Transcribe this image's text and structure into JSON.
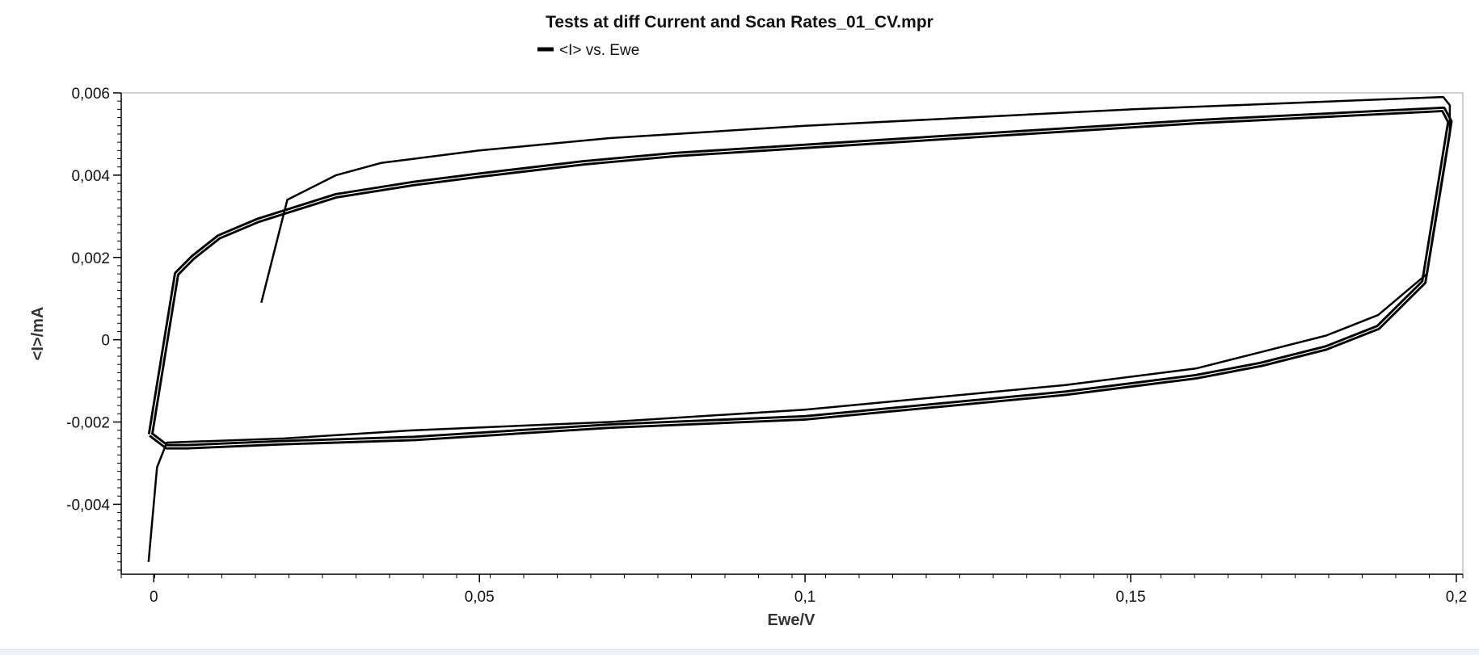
{
  "chart_data": {
    "type": "line",
    "title": "Tests at diff Current and Scan Rates_01_CV.mpr",
    "legend": {
      "entries": [
        "<I> vs. Ewe"
      ],
      "placement": "top-left"
    },
    "xlabel": "Ewe/V",
    "ylabel": "<I>/mA",
    "xlim": [
      -0.005,
      0.201
    ],
    "ylim": [
      -0.0057,
      0.006
    ],
    "x_ticks": [
      0,
      0.05,
      0.1,
      0.15,
      0.2
    ],
    "x_tick_labels": [
      "0",
      "0,05",
      "0,1",
      "0,15",
      "0,2"
    ],
    "y_ticks": [
      -0.004,
      -0.002,
      0,
      0.002,
      0.004,
      0.006
    ],
    "y_tick_labels": [
      "-0,004",
      "-0,002",
      "0",
      "0,002",
      "0,004",
      "0,006"
    ],
    "grid": false,
    "series": [
      {
        "name": "<I> vs. Ewe",
        "points": [
          [
            0.0165,
            0.0009
          ],
          [
            0.0205,
            0.0034
          ],
          [
            0.028,
            0.004
          ],
          [
            0.035,
            0.0043
          ],
          [
            0.05,
            0.0046
          ],
          [
            0.07,
            0.0049
          ],
          [
            0.1,
            0.0052
          ],
          [
            0.15,
            0.0056
          ],
          [
            0.198,
            0.0059
          ],
          [
            0.199,
            0.0057
          ],
          [
            0.199,
            0.005
          ],
          [
            0.1955,
            0.0016
          ],
          [
            0.188,
            0.0006
          ],
          [
            0.18,
            0.0001
          ],
          [
            0.17,
            -0.0003
          ],
          [
            0.16,
            -0.0007
          ],
          [
            0.14,
            -0.0011
          ],
          [
            0.12,
            -0.0014
          ],
          [
            0.1,
            -0.0017
          ],
          [
            0.07,
            -0.002
          ],
          [
            0.04,
            -0.0022
          ],
          [
            0.02,
            -0.0024
          ],
          [
            0.002,
            -0.0025
          ],
          [
            0.0005,
            -0.0031
          ],
          [
            -0.0008,
            -0.0054
          ]
        ]
      }
    ]
  },
  "thick_loop": {
    "points": [
      [
        -0.0005,
        -0.0023
      ],
      [
        0.0035,
        0.0016
      ],
      [
        0.006,
        0.002
      ],
      [
        0.01,
        0.0025
      ],
      [
        0.016,
        0.0029
      ],
      [
        0.02,
        0.0031
      ],
      [
        0.028,
        0.0035
      ],
      [
        0.04,
        0.0038
      ],
      [
        0.05,
        0.004
      ],
      [
        0.066,
        0.0043
      ],
      [
        0.08,
        0.0045
      ],
      [
        0.1,
        0.0047
      ],
      [
        0.13,
        0.005
      ],
      [
        0.16,
        0.0053
      ],
      [
        0.198,
        0.0056
      ],
      [
        0.199,
        0.0053
      ],
      [
        0.195,
        0.0014
      ],
      [
        0.188,
        0.0003
      ],
      [
        0.18,
        -0.0002
      ],
      [
        0.17,
        -0.0006
      ],
      [
        0.16,
        -0.0009
      ],
      [
        0.14,
        -0.0013
      ],
      [
        0.12,
        -0.0016
      ],
      [
        0.1,
        -0.0019
      ],
      [
        0.07,
        -0.0021
      ],
      [
        0.04,
        -0.0024
      ],
      [
        0.02,
        -0.0025
      ],
      [
        0.005,
        -0.0026
      ],
      [
        0.002,
        -0.0026
      ],
      [
        -0.0005,
        -0.0023
      ]
    ]
  }
}
